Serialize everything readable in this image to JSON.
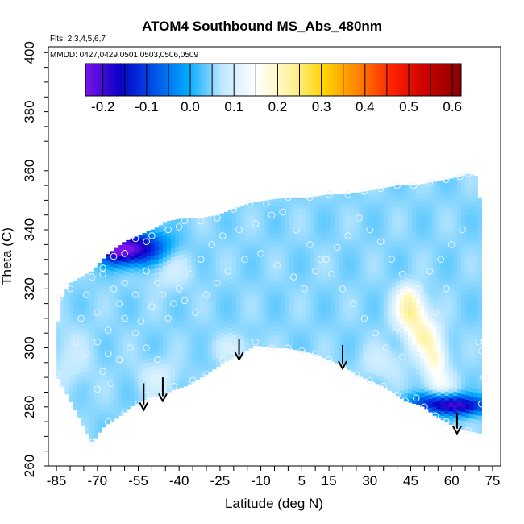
{
  "chart_data": {
    "type": "heatmap",
    "title": "ATOM4 Southbound MS_Abs_480nm",
    "annotations": {
      "flights": "Flts: 2,3,4,5,6,7",
      "dates": "MMDD: 0427,0429,0501,0503,0506,0509"
    },
    "xlabel": "Latitude (deg N)",
    "ylabel": "Theta (C)",
    "xlim": [
      -88,
      78
    ],
    "ylim": [
      260,
      402
    ],
    "x_ticks": [
      "-85",
      "-70",
      "-55",
      "-40",
      "-25",
      "-10",
      "5",
      "15",
      "30",
      "45",
      "60",
      "75"
    ],
    "y_ticks": [
      "260",
      "280",
      "300",
      "320",
      "340",
      "360",
      "380",
      "400"
    ],
    "colorbar": {
      "range": [
        -0.24,
        0.62
      ],
      "ticks": [
        "-0.2",
        "-0.1",
        "0.0",
        "0.1",
        "0.2",
        "0.3",
        "0.4",
        "0.5",
        "0.6"
      ],
      "colors": [
        "#7b14e8",
        "#0a00c8",
        "#0050e8",
        "#00aaff",
        "#bfe8ff",
        "#ffffff",
        "#fff3a0",
        "#ffd400",
        "#ff8000",
        "#ff2000",
        "#c80000",
        "#8a0000"
      ]
    },
    "field": {
      "background_value": 0.05,
      "bottom_boundary": [
        [
          -72,
          268
        ],
        [
          -68,
          273
        ],
        [
          -62,
          277
        ],
        [
          -58,
          280
        ],
        [
          -52,
          283
        ],
        [
          -46,
          284
        ],
        [
          -42,
          286
        ],
        [
          -38,
          287
        ],
        [
          -32,
          290
        ],
        [
          -27,
          293
        ],
        [
          -22,
          296
        ],
        [
          -17,
          298
        ],
        [
          -12,
          301
        ],
        [
          -5,
          300
        ],
        [
          0,
          300
        ],
        [
          5,
          299
        ],
        [
          10,
          298
        ],
        [
          15,
          296
        ],
        [
          20,
          294
        ],
        [
          25,
          291
        ],
        [
          30,
          289
        ],
        [
          35,
          287
        ],
        [
          40,
          284
        ],
        [
          43,
          282
        ],
        [
          47,
          281
        ],
        [
          50,
          280
        ],
        [
          54,
          277
        ],
        [
          58,
          275
        ],
        [
          62,
          273
        ],
        [
          66,
          272
        ],
        [
          71,
          271
        ]
      ],
      "top_boundary": [
        [
          -85,
          291
        ],
        [
          -84,
          315
        ],
        [
          -80,
          322
        ],
        [
          -72,
          326
        ],
        [
          -66,
          332
        ],
        [
          -60,
          336
        ],
        [
          -55,
          338
        ],
        [
          -50,
          340
        ],
        [
          -44,
          343
        ],
        [
          -38,
          344
        ],
        [
          -32,
          344
        ],
        [
          -26,
          345
        ],
        [
          -20,
          347
        ],
        [
          -14,
          349
        ],
        [
          -8,
          350
        ],
        [
          0,
          351
        ],
        [
          8,
          351
        ],
        [
          15,
          352
        ],
        [
          22,
          352
        ],
        [
          28,
          353
        ],
        [
          34,
          354
        ],
        [
          40,
          355
        ],
        [
          46,
          355
        ],
        [
          52,
          356
        ],
        [
          58,
          357
        ],
        [
          63,
          358
        ],
        [
          66,
          359
        ],
        [
          70,
          358
        ],
        [
          71,
          330
        ]
      ],
      "features": [
        {
          "x": -55,
          "y": 334,
          "sx": 8,
          "sy": 4,
          "value": -0.17
        },
        {
          "x": -63,
          "y": 333,
          "sx": 5,
          "sy": 3,
          "value": -0.12
        },
        {
          "x": -44,
          "y": 328,
          "sx": 6,
          "sy": 5,
          "value": 0.1
        },
        {
          "x": -80,
          "y": 296,
          "sx": 6,
          "sy": 8,
          "value": 0.08
        },
        {
          "x": 45,
          "y": 312,
          "sx": 4,
          "sy": 4,
          "value": 0.22
        },
        {
          "x": 50,
          "y": 304,
          "sx": 4,
          "sy": 4,
          "value": 0.2
        },
        {
          "x": 54,
          "y": 296,
          "sx": 3,
          "sy": 4,
          "value": 0.18
        },
        {
          "x": 44,
          "y": 318,
          "sx": 3,
          "sy": 3,
          "value": 0.14
        },
        {
          "x": 56,
          "y": 288,
          "sx": 4,
          "sy": 3,
          "value": 0.12
        },
        {
          "x": 56,
          "y": 282,
          "sx": 10,
          "sy": 2,
          "value": -0.08
        },
        {
          "x": 62,
          "y": 280,
          "sx": 8,
          "sy": 2,
          "value": -0.13
        },
        {
          "x": -20,
          "y": 300,
          "sx": 6,
          "sy": 3,
          "value": 0.09
        },
        {
          "x": -48,
          "y": 290,
          "sx": 5,
          "sy": 4,
          "value": 0.1
        },
        {
          "x": 35,
          "y": 295,
          "sx": 6,
          "sy": 4,
          "value": 0.09
        }
      ]
    },
    "arrows": [
      {
        "x": -53,
        "y_top": 288,
        "y_bottom": 279
      },
      {
        "x": -46,
        "y_top": 290,
        "y_bottom": 282
      },
      {
        "x": -18,
        "y_top": 303,
        "y_bottom": 296
      },
      {
        "x": 20,
        "y_top": 301,
        "y_bottom": 293
      },
      {
        "x": 62,
        "y_top": 278,
        "y_bottom": 271
      }
    ],
    "sample_points": [
      [
        -72,
        268
      ],
      [
        -66,
        275
      ],
      [
        -70,
        286
      ],
      [
        -68,
        292
      ],
      [
        -65,
        288
      ],
      [
        -60,
        278
      ],
      [
        -55,
        281
      ],
      [
        -52,
        284
      ],
      [
        -50,
        283
      ],
      [
        -46,
        286
      ],
      [
        -42,
        287
      ],
      [
        -35,
        289
      ],
      [
        -30,
        291
      ],
      [
        -24,
        296
      ],
      [
        -20,
        299
      ],
      [
        -12,
        302
      ],
      [
        -6,
        300
      ],
      [
        0,
        300
      ],
      [
        5,
        299
      ],
      [
        10,
        298
      ],
      [
        15,
        296
      ],
      [
        20,
        294
      ],
      [
        25,
        291
      ],
      [
        30,
        289
      ],
      [
        35,
        287
      ],
      [
        40,
        284
      ],
      [
        43,
        282
      ],
      [
        47,
        283
      ],
      [
        50,
        280
      ],
      [
        54,
        277
      ],
      [
        58,
        275
      ],
      [
        62,
        274
      ],
      [
        66,
        272
      ],
      [
        71,
        281
      ],
      [
        72,
        290
      ],
      [
        71,
        299
      ],
      [
        70,
        302
      ],
      [
        -85,
        291
      ],
      [
        -84,
        317
      ],
      [
        -80,
        320
      ],
      [
        -72,
        324
      ],
      [
        -68,
        327
      ],
      [
        -64,
        331
      ],
      [
        -60,
        332
      ],
      [
        -56,
        337
      ],
      [
        -52,
        336
      ],
      [
        -50,
        338
      ],
      [
        -44,
        340
      ],
      [
        -40,
        341
      ],
      [
        -38,
        343
      ],
      [
        -32,
        343
      ],
      [
        -26,
        344
      ],
      [
        -20,
        347
      ],
      [
        -14,
        349
      ],
      [
        -8,
        349
      ],
      [
        0,
        351
      ],
      [
        8,
        351
      ],
      [
        15,
        352
      ],
      [
        22,
        352
      ],
      [
        28,
        353
      ],
      [
        34,
        354
      ],
      [
        40,
        355
      ],
      [
        46,
        355
      ],
      [
        52,
        356
      ],
      [
        58,
        357
      ],
      [
        63,
        358
      ],
      [
        66,
        359
      ],
      [
        -68,
        325
      ],
      [
        -64,
        320
      ],
      [
        -62,
        315
      ],
      [
        -60,
        310
      ],
      [
        -56,
        305
      ],
      [
        -52,
        300
      ],
      [
        -48,
        296
      ],
      [
        -44,
        310
      ],
      [
        -42,
        315
      ],
      [
        -40,
        320
      ],
      [
        -36,
        325
      ],
      [
        -32,
        330
      ],
      [
        -28,
        335
      ],
      [
        -24,
        338
      ],
      [
        -18,
        340
      ],
      [
        -12,
        342
      ],
      [
        -6,
        345
      ],
      [
        -2,
        346
      ],
      [
        3,
        340
      ],
      [
        8,
        335
      ],
      [
        12,
        330
      ],
      [
        16,
        325
      ],
      [
        20,
        320
      ],
      [
        24,
        315
      ],
      [
        28,
        310
      ],
      [
        32,
        305
      ],
      [
        36,
        300
      ],
      [
        40,
        307
      ],
      [
        44,
        314
      ],
      [
        48,
        320
      ],
      [
        52,
        326
      ],
      [
        56,
        330
      ],
      [
        60,
        335
      ],
      [
        64,
        340
      ],
      [
        58,
        320
      ],
      [
        54,
        312
      ],
      [
        50,
        306
      ],
      [
        46,
        300
      ],
      [
        42,
        297
      ],
      [
        -60,
        322
      ],
      [
        -56,
        318
      ],
      [
        -50,
        314
      ],
      [
        -46,
        318
      ],
      [
        -54,
        309
      ],
      [
        -58,
        300
      ],
      [
        -62,
        296
      ],
      [
        -66,
        306
      ],
      [
        -70,
        312
      ],
      [
        -74,
        318
      ],
      [
        -76,
        310
      ],
      [
        -78,
        302
      ],
      [
        -74,
        298
      ],
      [
        -70,
        302
      ],
      [
        -66,
        298
      ],
      [
        -48,
        322
      ],
      [
        -52,
        326
      ],
      [
        -38,
        316
      ],
      [
        -34,
        312
      ],
      [
        -30,
        318
      ],
      [
        -26,
        322
      ],
      [
        -22,
        326
      ],
      [
        -16,
        330
      ],
      [
        -10,
        332
      ],
      [
        -4,
        328
      ],
      [
        2,
        324
      ],
      [
        6,
        320
      ],
      [
        10,
        326
      ],
      [
        14,
        330
      ],
      [
        18,
        334
      ],
      [
        22,
        338
      ],
      [
        26,
        344
      ],
      [
        30,
        340
      ],
      [
        34,
        336
      ],
      [
        38,
        330
      ],
      [
        42,
        325
      ]
    ]
  }
}
